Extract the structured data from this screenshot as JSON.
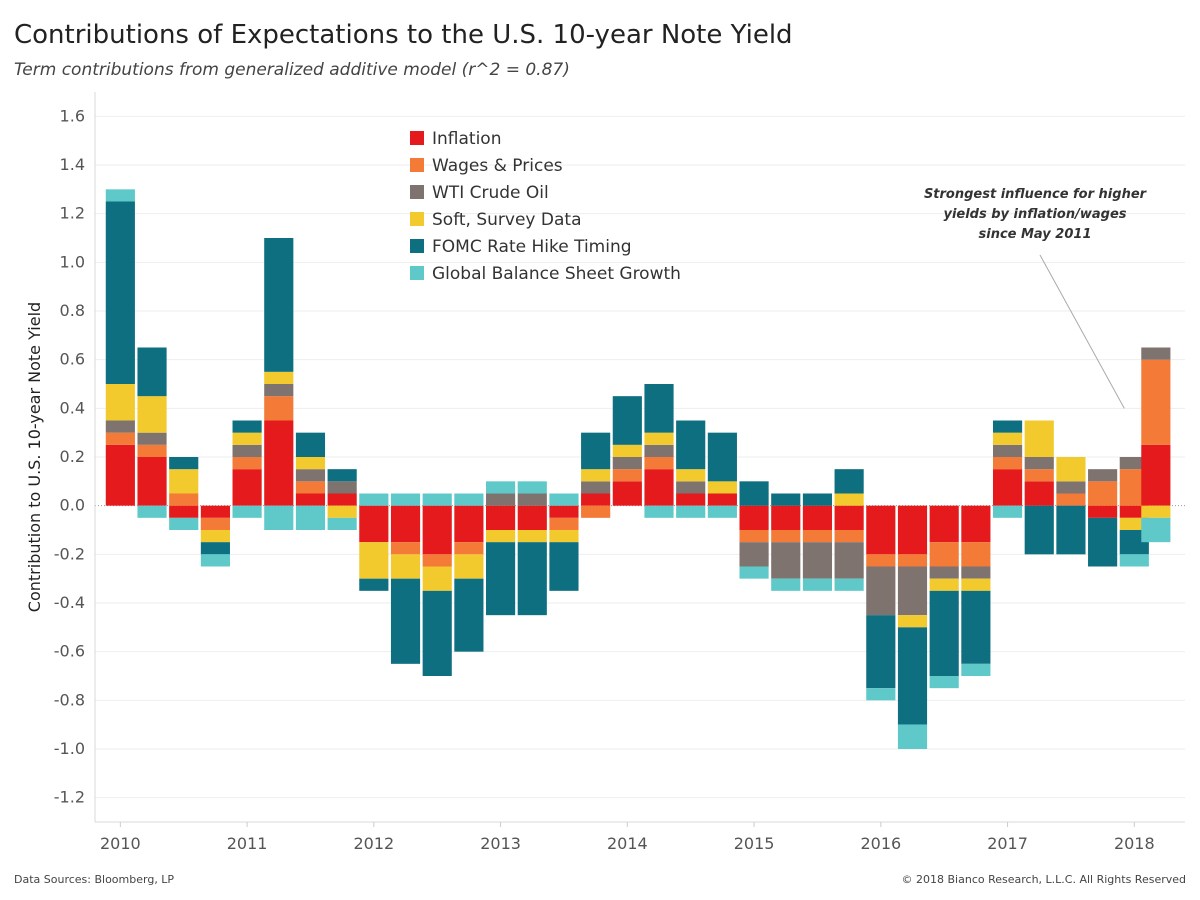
{
  "header": {
    "title": "Contributions of Expectations to the U.S. 10-year Note Yield",
    "subtitle": "Term contributions from generalized additive model (r^2 = 0.87)"
  },
  "footer": {
    "sources": "Data Sources: Bloomberg, LP",
    "copyright": "© 2018 Bianco Research, L.L.C. All Rights Reserved"
  },
  "chart_data": {
    "type": "area",
    "title": "Contributions of Expectations to the U.S. 10-year Note Yield",
    "subtitle": "Term contributions from generalized additive model (r^2 = 0.87)",
    "ylabel": "Contribution to U.S. 10-year Note Yield",
    "xlabel": "",
    "ylim": [
      -1.3,
      1.7
    ],
    "xlim": [
      2009.8,
      2018.4
    ],
    "y_ticks": [
      "1.6",
      "1.4",
      "1.2",
      "1.0",
      "0.8",
      "0.6",
      "0.4",
      "0.2",
      "0.0",
      "-0.2",
      "-0.4",
      "-0.6",
      "-0.8",
      "-1.0",
      "-1.2"
    ],
    "x_ticks": [
      "2010",
      "2011",
      "2012",
      "2013",
      "2014",
      "2015",
      "2016",
      "2017",
      "2018"
    ],
    "grid": true,
    "legend_position": "top-center",
    "x": [
      2010.0,
      2010.25,
      2010.5,
      2010.75,
      2011.0,
      2011.25,
      2011.5,
      2011.75,
      2012.0,
      2012.25,
      2012.5,
      2012.75,
      2013.0,
      2013.25,
      2013.5,
      2013.75,
      2014.0,
      2014.25,
      2014.5,
      2014.75,
      2015.0,
      2015.25,
      2015.5,
      2015.75,
      2016.0,
      2016.25,
      2016.5,
      2016.75,
      2017.0,
      2017.25,
      2017.5,
      2017.75,
      2018.0,
      2018.17
    ],
    "series": [
      {
        "name": "Inflation",
        "color": "#e41a1c",
        "values": [
          0.25,
          0.2,
          -0.05,
          -0.05,
          0.15,
          0.35,
          0.05,
          0.05,
          -0.15,
          -0.15,
          -0.2,
          -0.15,
          -0.1,
          -0.1,
          -0.05,
          0.05,
          0.1,
          0.15,
          0.05,
          0.05,
          -0.1,
          -0.1,
          -0.1,
          -0.1,
          -0.2,
          -0.2,
          -0.15,
          -0.15,
          0.15,
          0.1,
          0.0,
          -0.05,
          -0.05,
          0.25
        ]
      },
      {
        "name": "Wages & Prices",
        "color": "#f47a37",
        "values": [
          0.05,
          0.05,
          0.05,
          -0.05,
          0.05,
          0.1,
          0.05,
          0.0,
          0.0,
          -0.05,
          -0.05,
          -0.05,
          0.0,
          0.0,
          -0.05,
          -0.05,
          0.05,
          0.05,
          0.0,
          0.0,
          -0.05,
          -0.05,
          -0.05,
          -0.05,
          -0.05,
          -0.05,
          -0.1,
          -0.1,
          0.05,
          0.05,
          0.05,
          0.1,
          0.15,
          0.35
        ]
      },
      {
        "name": "WTI Crude Oil",
        "color": "#7f7370",
        "values": [
          0.05,
          0.05,
          0.0,
          0.0,
          0.05,
          0.05,
          0.05,
          0.05,
          0.0,
          0.0,
          0.0,
          0.0,
          0.05,
          0.05,
          0.0,
          0.05,
          0.05,
          0.05,
          0.05,
          0.0,
          -0.1,
          -0.15,
          -0.15,
          -0.15,
          -0.2,
          -0.2,
          -0.05,
          -0.05,
          0.05,
          0.05,
          0.05,
          0.05,
          0.05,
          0.05
        ]
      },
      {
        "name": "Soft, Survey Data",
        "color": "#f2ca2e",
        "values": [
          0.15,
          0.15,
          0.1,
          -0.05,
          0.05,
          0.05,
          0.05,
          -0.05,
          -0.15,
          -0.1,
          -0.1,
          -0.1,
          -0.05,
          -0.05,
          -0.05,
          0.05,
          0.05,
          0.05,
          0.05,
          0.05,
          0.0,
          0.0,
          0.0,
          0.05,
          0.0,
          -0.05,
          -0.05,
          -0.05,
          0.05,
          0.15,
          0.1,
          0.0,
          -0.05,
          -0.05
        ]
      },
      {
        "name": "FOMC Rate Hike Timing",
        "color": "#0e6f80",
        "values": [
          0.75,
          0.2,
          0.05,
          -0.05,
          0.05,
          0.55,
          0.1,
          0.05,
          -0.05,
          -0.35,
          -0.35,
          -0.3,
          -0.3,
          -0.3,
          -0.2,
          0.15,
          0.2,
          0.2,
          0.2,
          0.2,
          0.1,
          0.05,
          0.05,
          0.1,
          -0.3,
          -0.4,
          -0.35,
          -0.3,
          0.05,
          -0.2,
          -0.2,
          -0.2,
          -0.1,
          0.0
        ]
      },
      {
        "name": "Global Balance Sheet Growth",
        "color": "#5fc9c9",
        "values": [
          0.05,
          -0.05,
          -0.05,
          -0.05,
          -0.05,
          -0.1,
          -0.1,
          -0.05,
          0.05,
          0.05,
          0.05,
          0.05,
          0.05,
          0.05,
          0.05,
          0.0,
          0.0,
          -0.05,
          -0.05,
          -0.05,
          -0.05,
          -0.05,
          -0.05,
          -0.05,
          -0.05,
          -0.1,
          -0.05,
          -0.05,
          -0.05,
          0.0,
          0.0,
          0.0,
          -0.05,
          -0.1
        ]
      }
    ],
    "annotations": [
      {
        "lines": [
          "Strongest influence for higher",
          "yields by inflation/wages",
          "since May 2011"
        ],
        "points_to_x": 2018.0,
        "points_to_y": 0.4
      }
    ]
  }
}
